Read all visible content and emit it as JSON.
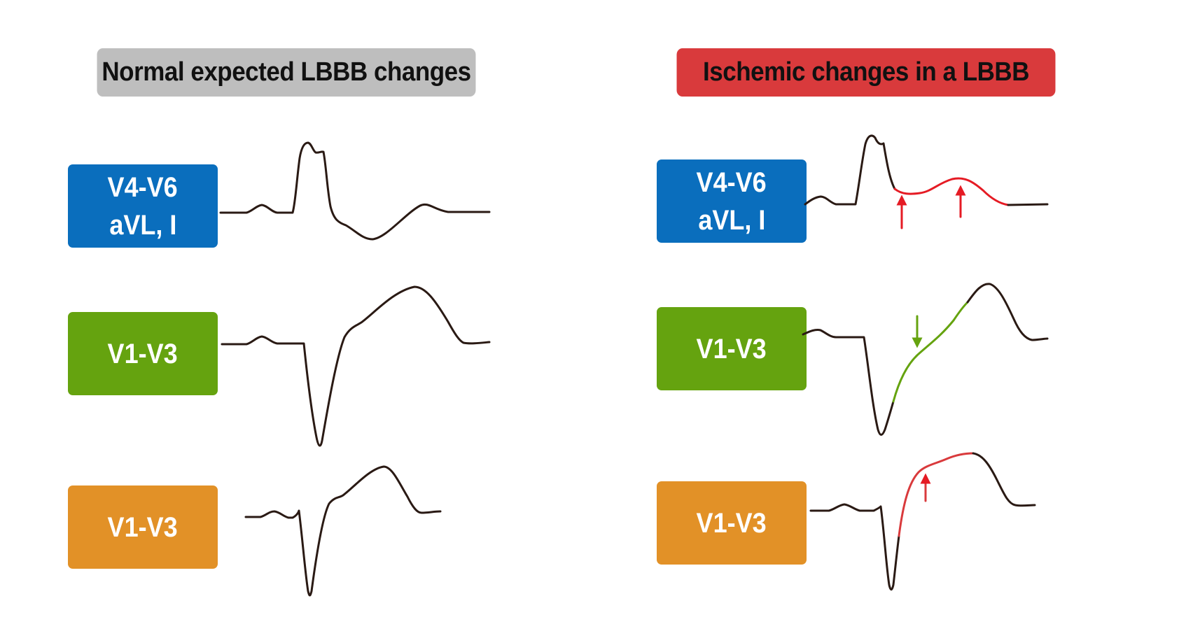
{
  "headers": {
    "left": {
      "label": "Normal expected LBBB changes",
      "color": "#bebebe"
    },
    "right": {
      "label": "Ischemic changes in a LBBB",
      "color": "#d93a3c"
    }
  },
  "colors": {
    "blue": "#0a6ebd",
    "green": "#65a30f",
    "orange": "#e29127",
    "trace": "#2a1a14",
    "ischemic_red": "#e51b24",
    "st_green": "#65a30f",
    "st_red": "#d93a3c"
  },
  "left_leads": [
    {
      "line1": "V4-V6",
      "line2": "aVL, I"
    },
    {
      "line1": "V1-V3",
      "line2": ""
    },
    {
      "line1": "V1-V3",
      "line2": ""
    }
  ],
  "right_leads": [
    {
      "line1": "V4-V6",
      "line2": "aVL, I"
    },
    {
      "line1": "V1-V3",
      "line2": ""
    },
    {
      "line1": "V1-V3",
      "line2": ""
    }
  ],
  "icons": {
    "st_elevation_arrow_1": "arrow-up-icon",
    "st_elevation_arrow_2": "arrow-up-icon",
    "st_depression_arrow": "arrow-down-icon",
    "st_elevation_arrow_3": "arrow-up-icon"
  }
}
